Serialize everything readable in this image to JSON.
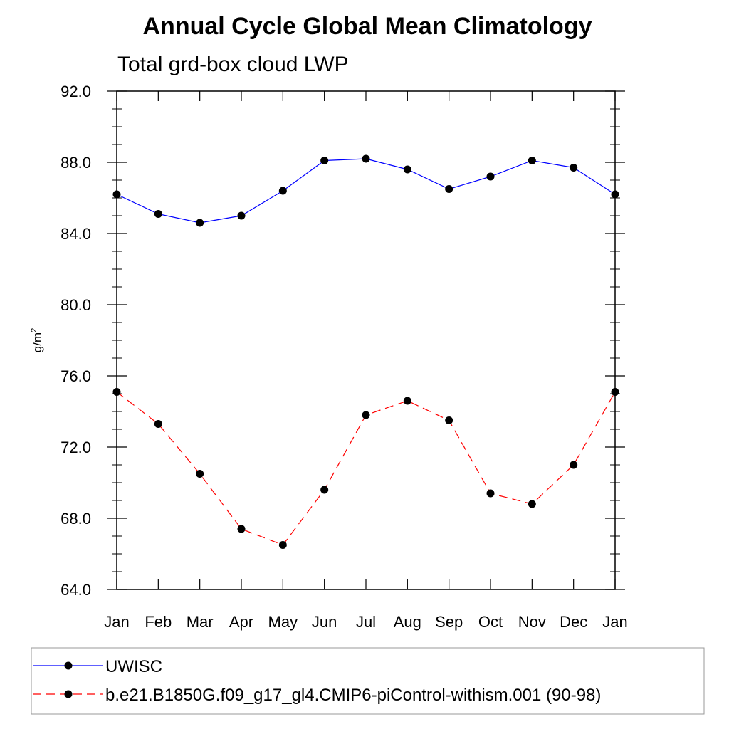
{
  "chart_data": {
    "type": "line",
    "title": "Annual Cycle Global Mean Climatology",
    "subtitle": "Total grd-box cloud LWP",
    "xlabel": "",
    "ylabel_base": "g/m",
    "ylabel_sup": "2",
    "categories": [
      "Jan",
      "Feb",
      "Mar",
      "Apr",
      "May",
      "Jun",
      "Jul",
      "Aug",
      "Sep",
      "Oct",
      "Nov",
      "Dec",
      "Jan"
    ],
    "ylim": [
      64.0,
      92.0
    ],
    "yticks": [
      "64.0",
      "68.0",
      "72.0",
      "76.0",
      "80.0",
      "84.0",
      "88.0",
      "92.0"
    ],
    "ytick_values": [
      64,
      68,
      72,
      76,
      80,
      84,
      88,
      92
    ],
    "grid": false,
    "legend_position": "bottom",
    "series": [
      {
        "name": "UWISC",
        "color": "#0000ff",
        "dashed": false,
        "values": [
          86.2,
          85.1,
          84.6,
          85.0,
          86.4,
          88.1,
          88.2,
          87.6,
          86.5,
          87.2,
          88.1,
          87.7,
          86.2
        ]
      },
      {
        "name": "b.e21.B1850G.f09_g17_gl4.CMIP6-piControl-withism.001 (90-98)",
        "color": "#ff0000",
        "dashed": true,
        "values": [
          75.1,
          73.3,
          70.5,
          67.4,
          66.5,
          69.6,
          73.8,
          74.6,
          73.5,
          69.4,
          68.8,
          71.0,
          75.1
        ]
      }
    ]
  }
}
